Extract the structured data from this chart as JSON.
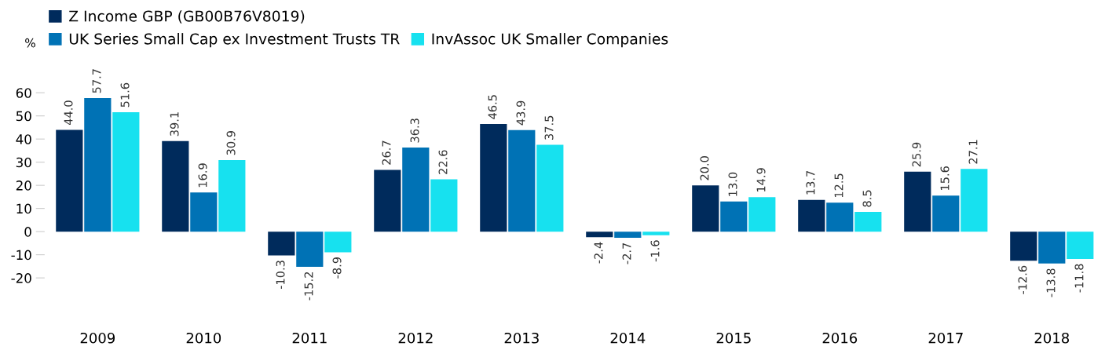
{
  "chart_data": {
    "type": "bar",
    "ylabel": "%",
    "categories": [
      "2009",
      "2010",
      "2011",
      "2012",
      "2013",
      "2014",
      "2015",
      "2016",
      "2017",
      "2018"
    ],
    "series": [
      {
        "name": "Z Income GBP (GB00B76V8019)",
        "color": "#002b5c",
        "values": [
          44.0,
          39.1,
          -10.3,
          26.7,
          46.5,
          -2.4,
          20.0,
          13.7,
          25.9,
          -12.6
        ],
        "value_labels": [
          "44.0",
          "39.1",
          "-10.3",
          "26.7",
          "46.5",
          "-2.4",
          "20.0",
          "13.7",
          "25.9",
          "-12.6"
        ]
      },
      {
        "name": "UK Series Small Cap ex Investment Trusts TR",
        "color": "#0072b5",
        "values": [
          57.7,
          16.9,
          -15.2,
          36.3,
          43.9,
          -2.7,
          13.0,
          12.5,
          15.6,
          -13.8
        ],
        "value_labels": [
          "57.7",
          "16.9",
          "-15.2",
          "36.3",
          "43.9",
          "-2.7",
          "13.0",
          "12.5",
          "15.6",
          "-13.8"
        ]
      },
      {
        "name": "InvAssoc UK Smaller Companies",
        "color": "#17e1ef",
        "values": [
          51.6,
          30.9,
          -8.9,
          22.6,
          37.5,
          -1.6,
          14.9,
          8.5,
          27.1,
          -11.8
        ],
        "value_labels": [
          "51.6",
          "30.9",
          "-8.9",
          "22.6",
          "37.5",
          "-1.6",
          "14.9",
          "8.5",
          "27.1",
          "-11.8"
        ]
      }
    ],
    "ylim": [
      -20,
      60
    ],
    "yticks": [
      -20,
      -10,
      0,
      10,
      20,
      30,
      40,
      50,
      60
    ],
    "grid": false,
    "legend": "top left"
  }
}
